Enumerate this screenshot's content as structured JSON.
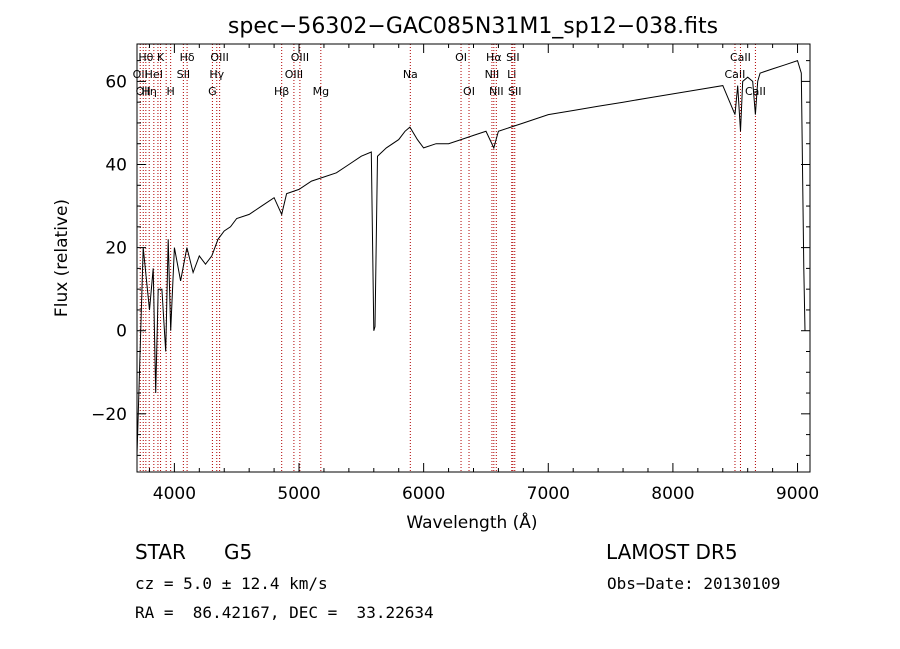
{
  "chart_data": {
    "type": "line",
    "title": "spec−56302−GAC085N31M1_sp12−038.fits",
    "xlabel": "Wavelength (Å)",
    "ylabel": "Flux (relative)",
    "xlim": [
      3700,
      9100
    ],
    "ylim": [
      -34,
      69
    ],
    "xticks": [
      4000,
      5000,
      6000,
      7000,
      8000,
      9000
    ],
    "yticks": [
      -20,
      0,
      20,
      40,
      60
    ],
    "ytick_labels": [
      "−20",
      "0",
      "20",
      "40",
      "60"
    ],
    "line_color": "#000000",
    "marker_color": "#b00000",
    "grid": false,
    "series": [
      {
        "x": [
          3700,
          3750,
          3800,
          3830,
          3850,
          3870,
          3900,
          3930,
          3950,
          3970,
          4000,
          4050,
          4100,
          4150,
          4200,
          4250,
          4300,
          4350,
          4400,
          4450,
          4500,
          4600,
          4700,
          4800,
          4861,
          4900,
          5000,
          5100,
          5200,
          5300,
          5400,
          5500,
          5580,
          5600,
          5610,
          5630,
          5700,
          5800,
          5850,
          5890,
          5950,
          6000,
          6100,
          6200,
          6300,
          6400,
          6500,
          6563,
          6600,
          6700,
          6800,
          7000,
          7200,
          7400,
          7600,
          7800,
          8000,
          8200,
          8400,
          8498,
          8520,
          8542,
          8560,
          8600,
          8640,
          8662,
          8680,
          8700,
          8800,
          8900,
          9000,
          9030,
          9050,
          9060
        ],
        "y": [
          -30,
          20,
          5,
          15,
          -15,
          10,
          10,
          -5,
          22,
          0,
          20,
          12,
          20,
          14,
          18,
          16,
          18,
          22,
          24,
          25,
          27,
          28,
          30,
          32,
          28,
          33,
          34,
          36,
          37,
          38,
          40,
          42,
          43,
          0,
          1,
          42,
          44,
          46,
          48,
          49,
          46,
          44,
          45,
          45,
          46,
          47,
          48,
          44,
          48,
          49,
          50,
          52,
          53,
          54,
          55,
          56,
          57,
          58,
          59,
          52,
          59,
          48,
          60,
          61,
          60,
          52,
          60,
          62,
          63,
          64,
          65,
          62,
          15,
          0
        ]
      }
    ],
    "line_markers": [
      {
        "x": 3726,
        "labels": [
          "OII"
        ],
        "row": 1
      },
      {
        "x": 3750,
        "labels": [
          "OII"
        ],
        "row": 2
      },
      {
        "x": 3771,
        "labels": [
          "Hθ"
        ],
        "row": 0
      },
      {
        "x": 3798,
        "labels": [
          "Hη"
        ],
        "row": 2
      },
      {
        "x": 3835,
        "labels": [
          "HeI"
        ],
        "row": 1
      },
      {
        "x": 3868,
        "labels": [],
        "row": 1
      },
      {
        "x": 3889,
        "labels": [
          "K"
        ],
        "row": 0
      },
      {
        "x": 3934,
        "labels": [],
        "row": 0
      },
      {
        "x": 3970,
        "labels": [
          "H"
        ],
        "row": 2
      },
      {
        "x": 4072,
        "labels": [
          "SII"
        ],
        "row": 1
      },
      {
        "x": 4102,
        "labels": [
          "Hδ"
        ],
        "row": 0
      },
      {
        "x": 4305,
        "labels": [
          "G"
        ],
        "row": 2
      },
      {
        "x": 4340,
        "labels": [
          "Hγ"
        ],
        "row": 1
      },
      {
        "x": 4363,
        "labels": [
          "OIII"
        ],
        "row": 0
      },
      {
        "x": 4861,
        "labels": [
          "Hβ"
        ],
        "row": 2
      },
      {
        "x": 4959,
        "labels": [
          "OIII"
        ],
        "row": 1
      },
      {
        "x": 5007,
        "labels": [
          "OIII"
        ],
        "row": 0
      },
      {
        "x": 5175,
        "labels": [
          "Mg"
        ],
        "row": 2
      },
      {
        "x": 5893,
        "labels": [
          "Na"
        ],
        "row": 1
      },
      {
        "x": 6300,
        "labels": [
          "OI"
        ],
        "row": 0
      },
      {
        "x": 6364,
        "labels": [
          "OI"
        ],
        "row": 2
      },
      {
        "x": 6548,
        "labels": [
          "NII"
        ],
        "row": 1
      },
      {
        "x": 6563,
        "labels": [
          "Hα"
        ],
        "row": 0
      },
      {
        "x": 6583,
        "labels": [
          "NII"
        ],
        "row": 2
      },
      {
        "x": 6707,
        "labels": [
          "Li"
        ],
        "row": 1
      },
      {
        "x": 6716,
        "labels": [
          "SII"
        ],
        "row": 0
      },
      {
        "x": 6731,
        "labels": [
          "SII"
        ],
        "row": 2
      },
      {
        "x": 8498,
        "labels": [
          "CaII"
        ],
        "row": 1
      },
      {
        "x": 8542,
        "labels": [
          "CaII"
        ],
        "row": 0
      },
      {
        "x": 8662,
        "labels": [
          "CaII"
        ],
        "row": 2
      }
    ]
  },
  "info": {
    "class": "STAR",
    "subclass": "G5",
    "survey": "LAMOST DR5",
    "cz": "cz = 5.0 ± 12.4 km/s",
    "obs_date": "Obs−Date: 20130109",
    "radec": "RA =  86.42167, DEC =  33.22634"
  }
}
